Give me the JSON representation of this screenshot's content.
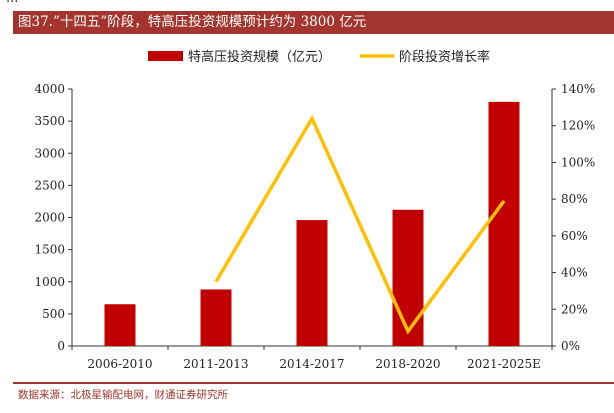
{
  "header": {
    "top_fragment": "...",
    "title": "图37.”十四五”阶段，特高压投资规模预计约为 3800 亿元"
  },
  "source": "数据来源：北极星输配电网，财通证券研究所",
  "colors": {
    "bar": "#c00000",
    "line": "#ffc000",
    "title_bg": "#a3352e"
  },
  "chart_data": {
    "type": "bar",
    "title": "”十四五”阶段，特高压投资规模预计约为 3800 亿元",
    "categories": [
      "2006-2010",
      "2011-2013",
      "2014-2017",
      "2018-2020",
      "2021-2025E"
    ],
    "series": [
      {
        "name": "特高压投资规模（亿元）",
        "type": "bar",
        "axis": "left",
        "values": [
          650,
          880,
          1960,
          2120,
          3800
        ]
      },
      {
        "name": "阶段投资增长率",
        "type": "line",
        "axis": "right",
        "values": [
          null,
          0.35,
          1.24,
          0.08,
          0.79
        ]
      }
    ],
    "y_left": {
      "min": 0,
      "max": 4000,
      "ticks": [
        "0",
        "500",
        "1000",
        "1500",
        "2000",
        "2500",
        "3000",
        "3500",
        "4000"
      ]
    },
    "y_right": {
      "min": 0,
      "max": 1.4,
      "ticks": [
        "0%",
        "20%",
        "40%",
        "60%",
        "80%",
        "100%",
        "120%",
        "140%"
      ]
    },
    "legend_position": "top"
  }
}
